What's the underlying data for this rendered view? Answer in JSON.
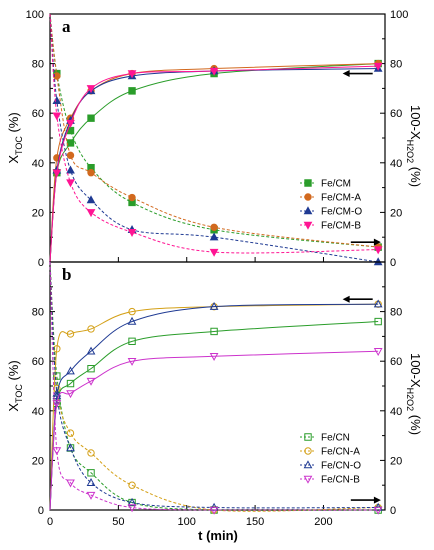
{
  "chart_data": [
    {
      "panel": "a",
      "type": "scatter",
      "xlabel": "t (min)",
      "ylabel_left": "X_TOC (%)",
      "ylabel_right": "100-X_H2O2 (%)",
      "xlim": [
        0,
        245
      ],
      "ylim": [
        0,
        100
      ],
      "x_ticks": [],
      "y_ticks": [
        0,
        20,
        40,
        60,
        80,
        100
      ],
      "arrow_left_value": 76,
      "arrow_right_value": 8,
      "series": [
        {
          "name": "Fe/CM",
          "color": "#2a9d2a",
          "marker": "square",
          "filled": true,
          "toc": [
            [
              0,
              0
            ],
            [
              5,
              36
            ],
            [
              15,
              48
            ],
            [
              30,
              58
            ],
            [
              60,
              69
            ],
            [
              120,
              76
            ],
            [
              240,
              80
            ]
          ],
          "h2o2": [
            [
              0,
              100
            ],
            [
              5,
              76
            ],
            [
              15,
              53
            ],
            [
              30,
              38
            ],
            [
              60,
              24
            ],
            [
              120,
              13
            ],
            [
              240,
              6
            ]
          ]
        },
        {
          "name": "Fe/CM-A",
          "color": "#d2691e",
          "marker": "circle",
          "filled": true,
          "toc": [
            [
              0,
              0
            ],
            [
              5,
              42
            ],
            [
              15,
              58
            ],
            [
              30,
              69
            ],
            [
              60,
              76
            ],
            [
              120,
              78
            ],
            [
              240,
              80
            ]
          ],
          "h2o2": [
            [
              0,
              100
            ],
            [
              5,
              75
            ],
            [
              15,
              43
            ],
            [
              30,
              36
            ],
            [
              60,
              26
            ],
            [
              120,
              14
            ],
            [
              240,
              6
            ]
          ]
        },
        {
          "name": "Fe/CM-O",
          "color": "#1f3a93",
          "marker": "triangle-up",
          "filled": true,
          "toc": [
            [
              0,
              0
            ],
            [
              5,
              37
            ],
            [
              15,
              57
            ],
            [
              30,
              69
            ],
            [
              60,
              75
            ],
            [
              120,
              77
            ],
            [
              240,
              78
            ]
          ],
          "h2o2": [
            [
              0,
              100
            ],
            [
              5,
              65
            ],
            [
              15,
              37
            ],
            [
              30,
              25
            ],
            [
              60,
              13
            ],
            [
              120,
              10
            ],
            [
              240,
              0
            ]
          ]
        },
        {
          "name": "Fe/CM-B",
          "color": "#ff1493",
          "marker": "triangle-down",
          "filled": true,
          "toc": [
            [
              0,
              0
            ],
            [
              5,
              36
            ],
            [
              15,
              56
            ],
            [
              30,
              70
            ],
            [
              60,
              76
            ],
            [
              120,
              77
            ],
            [
              240,
              79
            ]
          ],
          "h2o2": [
            [
              0,
              100
            ],
            [
              5,
              59
            ],
            [
              15,
              32
            ],
            [
              30,
              20
            ],
            [
              60,
              12
            ],
            [
              120,
              4
            ],
            [
              240,
              5
            ]
          ]
        }
      ]
    },
    {
      "panel": "b",
      "type": "scatter",
      "xlabel": "t (min)",
      "ylabel_left": "X_TOC (%)",
      "ylabel_right": "100-X_H2O2 (%)",
      "xlim": [
        0,
        245
      ],
      "ylim": [
        0,
        100
      ],
      "x_ticks": [
        0,
        50,
        100,
        150,
        200
      ],
      "y_ticks": [
        0,
        20,
        40,
        60,
        80
      ],
      "arrow_left_value": 85,
      "arrow_right_value": 4,
      "series": [
        {
          "name": "Fe/CN",
          "color": "#2a9d2a",
          "marker": "square",
          "filled": false,
          "toc": [
            [
              0,
              0
            ],
            [
              5,
              43
            ],
            [
              15,
              51
            ],
            [
              30,
              57
            ],
            [
              60,
              68
            ],
            [
              120,
              72
            ],
            [
              240,
              76
            ]
          ],
          "h2o2": [
            [
              0,
              100
            ],
            [
              5,
              54
            ],
            [
              15,
              25
            ],
            [
              30,
              15
            ],
            [
              60,
              3
            ],
            [
              120,
              0
            ],
            [
              240,
              0
            ]
          ]
        },
        {
          "name": "Fe/CN-A",
          "color": "#d4a017",
          "marker": "circle",
          "filled": false,
          "toc": [
            [
              0,
              0
            ],
            [
              5,
              65
            ],
            [
              15,
              71
            ],
            [
              30,
              73
            ],
            [
              60,
              80
            ],
            [
              120,
              82
            ],
            [
              240,
              83
            ]
          ],
          "h2o2": [
            [
              0,
              100
            ],
            [
              5,
              49
            ],
            [
              15,
              31
            ],
            [
              30,
              23
            ],
            [
              60,
              10
            ],
            [
              120,
              0
            ],
            [
              240,
              1
            ]
          ]
        },
        {
          "name": "Fe/CN-O",
          "color": "#1f3a93",
          "marker": "triangle-up",
          "filled": false,
          "toc": [
            [
              0,
              0
            ],
            [
              5,
              46
            ],
            [
              15,
              56
            ],
            [
              30,
              64
            ],
            [
              60,
              76
            ],
            [
              120,
              82
            ],
            [
              240,
              83
            ]
          ],
          "h2o2": [
            [
              0,
              100
            ],
            [
              5,
              47
            ],
            [
              15,
              25
            ],
            [
              30,
              11
            ],
            [
              60,
              3
            ],
            [
              120,
              1
            ],
            [
              240,
              1
            ]
          ]
        },
        {
          "name": "Fe/CN-B",
          "color": "#cc33cc",
          "marker": "triangle-down",
          "filled": false,
          "toc": [
            [
              0,
              0
            ],
            [
              5,
              43
            ],
            [
              15,
              47
            ],
            [
              30,
              52
            ],
            [
              60,
              60
            ],
            [
              120,
              62
            ],
            [
              240,
              64
            ]
          ],
          "h2o2": [
            [
              0,
              100
            ],
            [
              5,
              24
            ],
            [
              15,
              11
            ],
            [
              30,
              6
            ],
            [
              60,
              1
            ],
            [
              120,
              0
            ],
            [
              240,
              0
            ]
          ]
        }
      ]
    }
  ]
}
